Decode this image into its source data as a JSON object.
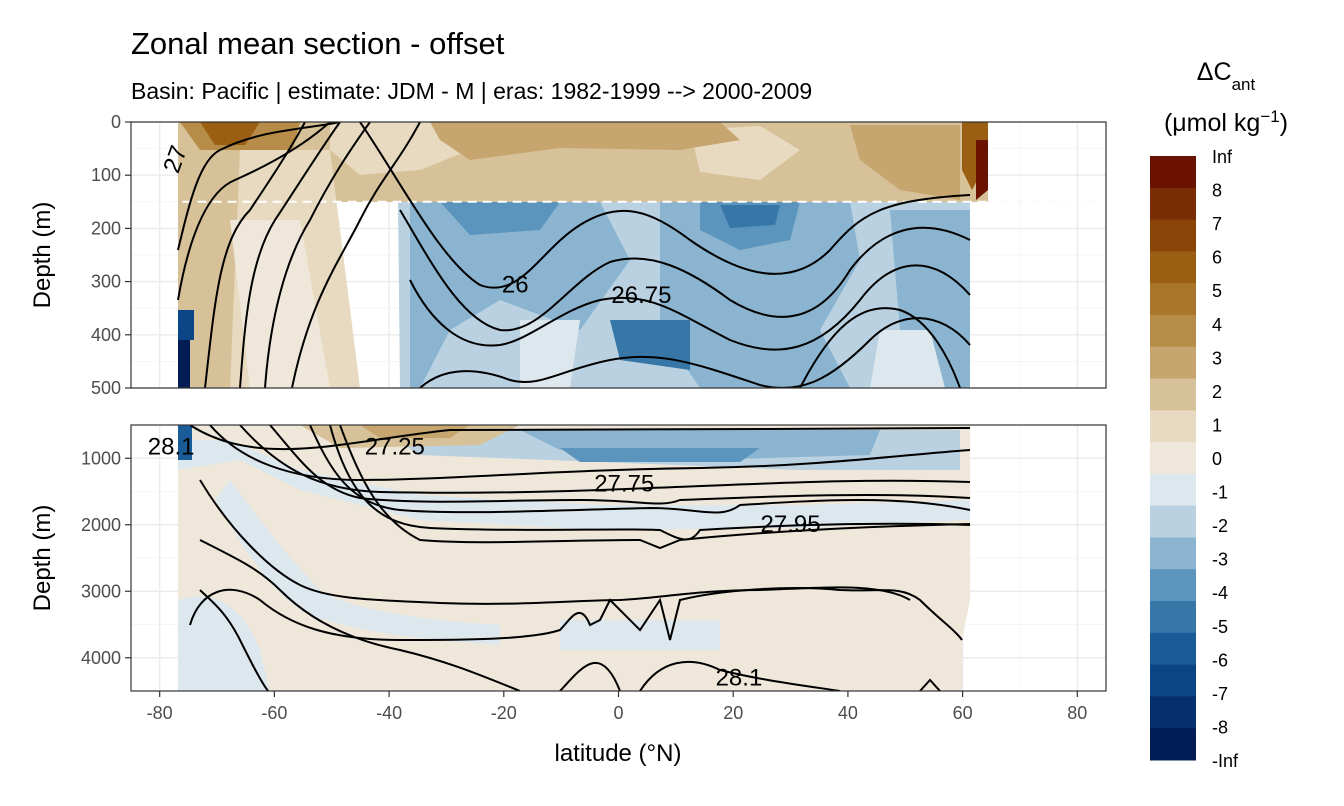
{
  "chart_data": {
    "type": "heatmap",
    "title": "Zonal mean section - offset",
    "subtitle": "Basin: Pacific | estimate: JDM - M | eras: 1982-1999 --> 2000-2009",
    "xlabel": "latitude (°N)",
    "ylabel": "Depth (m)",
    "xlim": [
      -85,
      85
    ],
    "x_ticks": [
      -80,
      -60,
      -40,
      -20,
      0,
      20,
      40,
      60,
      80
    ],
    "panels": [
      {
        "name": "upper",
        "ylim": [
          0,
          500
        ],
        "y_ticks": [
          0,
          100,
          200,
          300,
          400,
          500
        ],
        "mixed_layer_depth": 150,
        "contour_labels": [
          {
            "text": "26",
            "lat": -18,
            "depth": 305
          },
          {
            "text": "26.75",
            "lat": 4,
            "depth": 325
          },
          {
            "text": "27",
            "lat": -76,
            "depth": 60
          }
        ]
      },
      {
        "name": "lower",
        "ylim": [
          500,
          4500
        ],
        "y_ticks": [
          1000,
          2000,
          3000,
          4000
        ],
        "contour_labels": [
          {
            "text": "28.1",
            "lat": -78,
            "depth": 820
          },
          {
            "text": "27.25",
            "lat": -39,
            "depth": 820
          },
          {
            "text": "27.75",
            "lat": 1,
            "depth": 1380
          },
          {
            "text": "27.95",
            "lat": 30,
            "depth": 1990
          },
          {
            "text": "28.1",
            "lat": 21,
            "depth": 4300
          }
        ]
      }
    ],
    "legend": {
      "title_main": "ΔC",
      "title_sub": "ant",
      "unit_main": "(μmol kg",
      "unit_sup": "−1",
      "unit_close": ")",
      "labels": [
        "Inf",
        "8",
        "7",
        "6",
        "5",
        "4",
        "3",
        "2",
        "1",
        "0",
        "-1",
        "-2",
        "-3",
        "-4",
        "-5",
        "-6",
        "-7",
        "-8",
        "-Inf"
      ],
      "colors": [
        "#6b1100",
        "#7a2c04",
        "#8a4407",
        "#9a5f12",
        "#a9762b",
        "#b78c48",
        "#c6a56f",
        "#d7c198",
        "#e7dac0",
        "#efe8da",
        "#dde7ee",
        "#b9d1e0",
        "#8ab4cf",
        "#5b95bd",
        "#3677a8",
        "#1a5c97",
        "#0b4585",
        "#062f6d",
        "#021c55"
      ]
    }
  }
}
